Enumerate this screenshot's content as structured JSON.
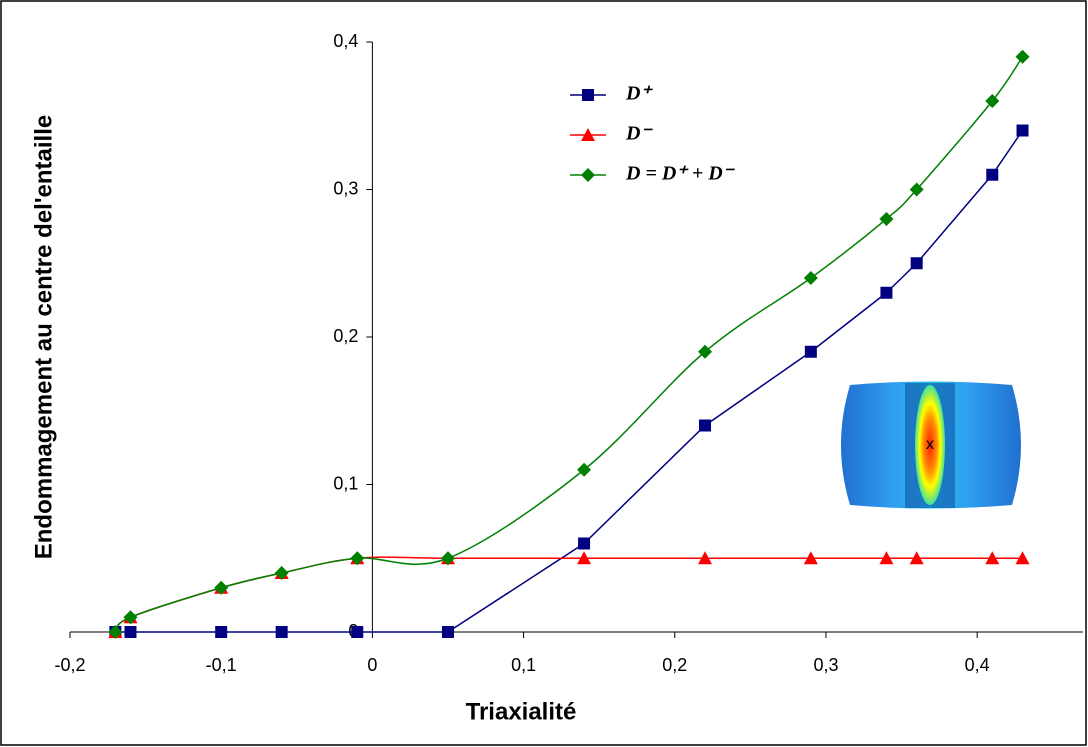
{
  "chart_data": {
    "type": "line",
    "x_label": "Triaxialité",
    "y_label": "Endommagement au centre del'entaille",
    "x": [
      -0.17,
      -0.16,
      -0.1,
      -0.06,
      -0.01,
      0.05,
      0.14,
      0.22,
      0.29,
      0.34,
      0.36,
      0.41,
      0.43
    ],
    "series": [
      {
        "name": "D⁺",
        "color": "#000080",
        "marker": "square",
        "smooth": false,
        "values": [
          0,
          0,
          0,
          0,
          0,
          0,
          0.06,
          0.14,
          0.19,
          0.23,
          0.25,
          0.31,
          0.34
        ]
      },
      {
        "name": "D⁻",
        "color": "#ff0000",
        "marker": "triangle",
        "smooth": true,
        "values": [
          0,
          0.01,
          0.03,
          0.04,
          0.05,
          0.05,
          0.05,
          0.05,
          0.05,
          0.05,
          0.05,
          0.05,
          0.05
        ]
      },
      {
        "name": "D = D⁺ + D⁻",
        "color": "#008000",
        "marker": "diamond",
        "smooth": true,
        "values": [
          0,
          0.01,
          0.03,
          0.04,
          0.05,
          0.05,
          0.11,
          0.19,
          0.24,
          0.28,
          0.3,
          0.36,
          0.39
        ]
      }
    ],
    "xlim": [
      -0.2,
      0.47
    ],
    "ylim": [
      0,
      0.4
    ],
    "xticks": [
      {
        "value": -0.2,
        "label": "-0,2"
      },
      {
        "value": -0.1,
        "label": "-0,1"
      },
      0,
      {
        "value": 0.1,
        "label": "0,1"
      },
      {
        "value": 0.2,
        "label": "0,2"
      },
      {
        "value": 0.3,
        "label": "0,3"
      },
      {
        "value": 0.4,
        "label": "0,4"
      }
    ],
    "yticks": [
      0,
      {
        "value": 0.1,
        "label": "0,1"
      },
      {
        "value": 0.2,
        "label": "0,2"
      },
      {
        "value": 0.3,
        "label": "0,3"
      },
      {
        "value": 0.4,
        "label": "0,4"
      }
    ],
    "legend": "upper-center",
    "inset_label": "x"
  }
}
